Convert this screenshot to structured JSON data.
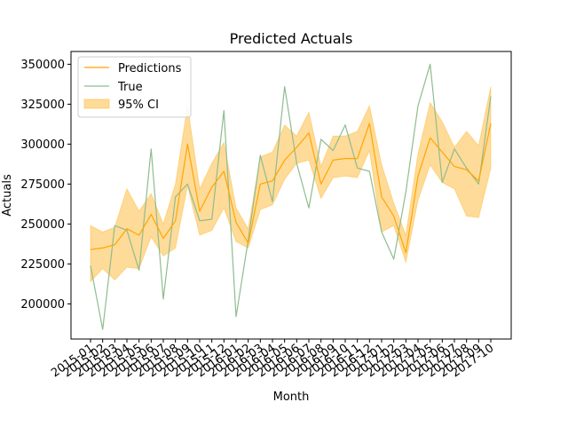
{
  "chart_data": {
    "type": "line",
    "title": "Predicted Actuals",
    "xlabel": "Month",
    "ylabel": "Actuals",
    "ylim": [
      178000,
      358000
    ],
    "yticks": [
      200000,
      225000,
      250000,
      275000,
      300000,
      325000,
      350000
    ],
    "ytick_labels": [
      "200000",
      "225000",
      "250000",
      "275000",
      "300000",
      "325000",
      "350000"
    ],
    "grid": false,
    "legend_position": "top-left",
    "categories": [
      "2015-01",
      "2015-02",
      "2015-03",
      "2015-04",
      "2015-05",
      "2015-06",
      "2015-07",
      "2015-08",
      "2015-09",
      "2015-10",
      "2015-11",
      "2015-12",
      "2016-01",
      "2016-02",
      "2016-03",
      "2016-04",
      "2016-05",
      "2016-06",
      "2016-07",
      "2016-08",
      "2016-09",
      "2016-10",
      "2016-11",
      "2016-12",
      "2017-01",
      "2017-02",
      "2017-03",
      "2017-04",
      "2017-05",
      "2017-06",
      "2017-07",
      "2017-08",
      "2017-09",
      "2017-10"
    ],
    "series": [
      {
        "name": "Predictions",
        "kind": "line",
        "color": "#FFA500",
        "values": [
          234000,
          235000,
          237000,
          247000,
          243000,
          256000,
          241000,
          252000,
          300000,
          258000,
          273000,
          283000,
          251000,
          238000,
          275000,
          277000,
          290000,
          298000,
          307000,
          275000,
          290000,
          291000,
          291000,
          313000,
          267000,
          255000,
          232000,
          280000,
          304000,
          295000,
          286000,
          284000,
          277000,
          313000
        ]
      },
      {
        "name": "True",
        "kind": "line",
        "color": "#8FBC8F",
        "values": [
          224000,
          184000,
          249000,
          246000,
          221000,
          297000,
          203000,
          267000,
          275000,
          252000,
          253000,
          321000,
          192000,
          240000,
          293000,
          264000,
          336000,
          288000,
          260000,
          303000,
          296000,
          312000,
          285000,
          283000,
          245000,
          228000,
          270000,
          324000,
          350000,
          276000,
          297000,
          285000,
          275000,
          330000
        ]
      },
      {
        "name": "95% CI",
        "kind": "band",
        "color": "#FFA500",
        "lower": [
          214000,
          222000,
          215000,
          223000,
          222000,
          242000,
          230000,
          235000,
          274000,
          243000,
          246000,
          260000,
          239000,
          235000,
          259000,
          262000,
          278000,
          288000,
          290000,
          266000,
          279000,
          280000,
          279000,
          296000,
          245000,
          249000,
          226000,
          265000,
          287000,
          276000,
          272000,
          255000,
          254000,
          285000
        ],
        "upper": [
          249000,
          245000,
          248000,
          272000,
          258000,
          269000,
          250000,
          275000,
          324000,
          272000,
          288000,
          301000,
          260000,
          247000,
          292000,
          295000,
          312000,
          305000,
          320000,
          286000,
          305000,
          305000,
          308000,
          324000,
          287000,
          263000,
          243000,
          294000,
          326000,
          314000,
          298000,
          308000,
          299000,
          336000
        ]
      }
    ]
  }
}
